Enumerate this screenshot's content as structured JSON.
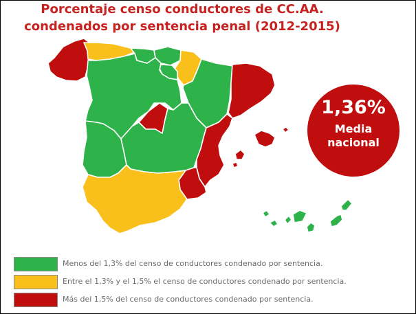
{
  "title": {
    "line1": "Porcentaje censo conductores de CC.AA.",
    "line2": "condenados por sentencia penal (2012-2015)"
  },
  "colors": {
    "title": "#c7221f",
    "green": "#2eb34a",
    "yellow": "#f9bf1b",
    "red": "#c00d0d",
    "badge": "#c00d0d"
  },
  "badge": {
    "value": "1,36%",
    "label_line1": "Media",
    "label_line2": "nacional"
  },
  "legend": [
    {
      "category": "green",
      "text": "Menos del 1,3% del censo de conductores condenado por sentencia."
    },
    {
      "category": "yellow",
      "text": "Entre el 1,3% y el 1,5% el censo de conductores condenado por sentencia."
    },
    {
      "category": "red",
      "text": "Más del 1,5% del censo de conductores condenado por sentencia."
    }
  ],
  "regions": [
    {
      "name": "Galicia",
      "category": "red"
    },
    {
      "name": "Asturias",
      "category": "yellow"
    },
    {
      "name": "Cantabria",
      "category": "green"
    },
    {
      "name": "País Vasco",
      "category": "green"
    },
    {
      "name": "Navarra",
      "category": "yellow"
    },
    {
      "name": "La Rioja",
      "category": "green"
    },
    {
      "name": "Aragón",
      "category": "green"
    },
    {
      "name": "Cataluña",
      "category": "red"
    },
    {
      "name": "Castilla y León",
      "category": "green"
    },
    {
      "name": "Madrid",
      "category": "red"
    },
    {
      "name": "Extremadura",
      "category": "green"
    },
    {
      "name": "Castilla-La Mancha",
      "category": "green"
    },
    {
      "name": "Comunidad Valenciana",
      "category": "red"
    },
    {
      "name": "Murcia",
      "category": "red"
    },
    {
      "name": "Andalucía",
      "category": "yellow"
    },
    {
      "name": "Islas Baleares",
      "category": "red"
    },
    {
      "name": "Canarias",
      "category": "green"
    }
  ]
}
